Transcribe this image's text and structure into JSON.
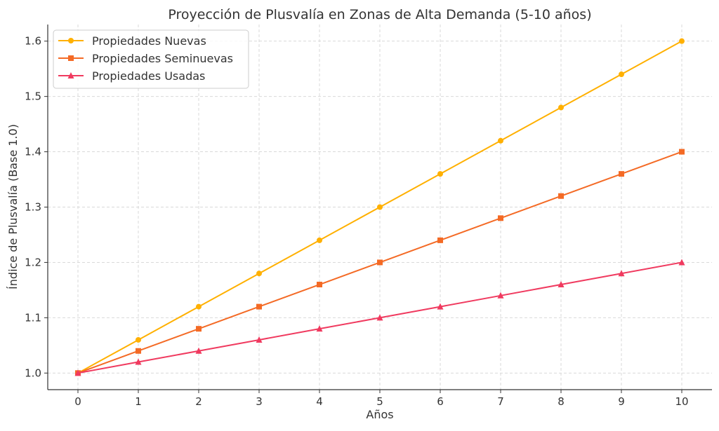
{
  "chart_data": {
    "type": "line",
    "title": "Proyección de Plusvalía en Zonas de Alta Demanda (5-10 años)",
    "xlabel": "Años",
    "ylabel": "Índice de Plusvalía (Base 1.0)",
    "x": [
      0,
      1,
      2,
      3,
      4,
      5,
      6,
      7,
      8,
      9,
      10
    ],
    "xlim": [
      -0.5,
      10.5
    ],
    "ylim": [
      0.97,
      1.63
    ],
    "xticks": [
      0,
      1,
      2,
      3,
      4,
      5,
      6,
      7,
      8,
      9,
      10
    ],
    "yticks": [
      1.0,
      1.1,
      1.2,
      1.3,
      1.4,
      1.5,
      1.6
    ],
    "ytick_labels": [
      "1.0",
      "1.1",
      "1.2",
      "1.3",
      "1.4",
      "1.5",
      "1.6"
    ],
    "grid": true,
    "legend_position": "top-left",
    "series": [
      {
        "name": "Propiedades Nuevas",
        "color": "#FFB000",
        "marker": "circle",
        "values": [
          1.0,
          1.06,
          1.12,
          1.18,
          1.24,
          1.3,
          1.36,
          1.42,
          1.48,
          1.54,
          1.6
        ]
      },
      {
        "name": "Propiedades Seminuevas",
        "color": "#F46A25",
        "marker": "square",
        "values": [
          1.0,
          1.04,
          1.08,
          1.12,
          1.16,
          1.2,
          1.24,
          1.28,
          1.32,
          1.36,
          1.4
        ]
      },
      {
        "name": "Propiedades Usadas",
        "color": "#F03A5F",
        "marker": "triangle",
        "values": [
          1.0,
          1.02,
          1.04,
          1.06,
          1.08,
          1.1,
          1.12,
          1.14,
          1.16,
          1.18,
          1.2
        ]
      }
    ]
  }
}
